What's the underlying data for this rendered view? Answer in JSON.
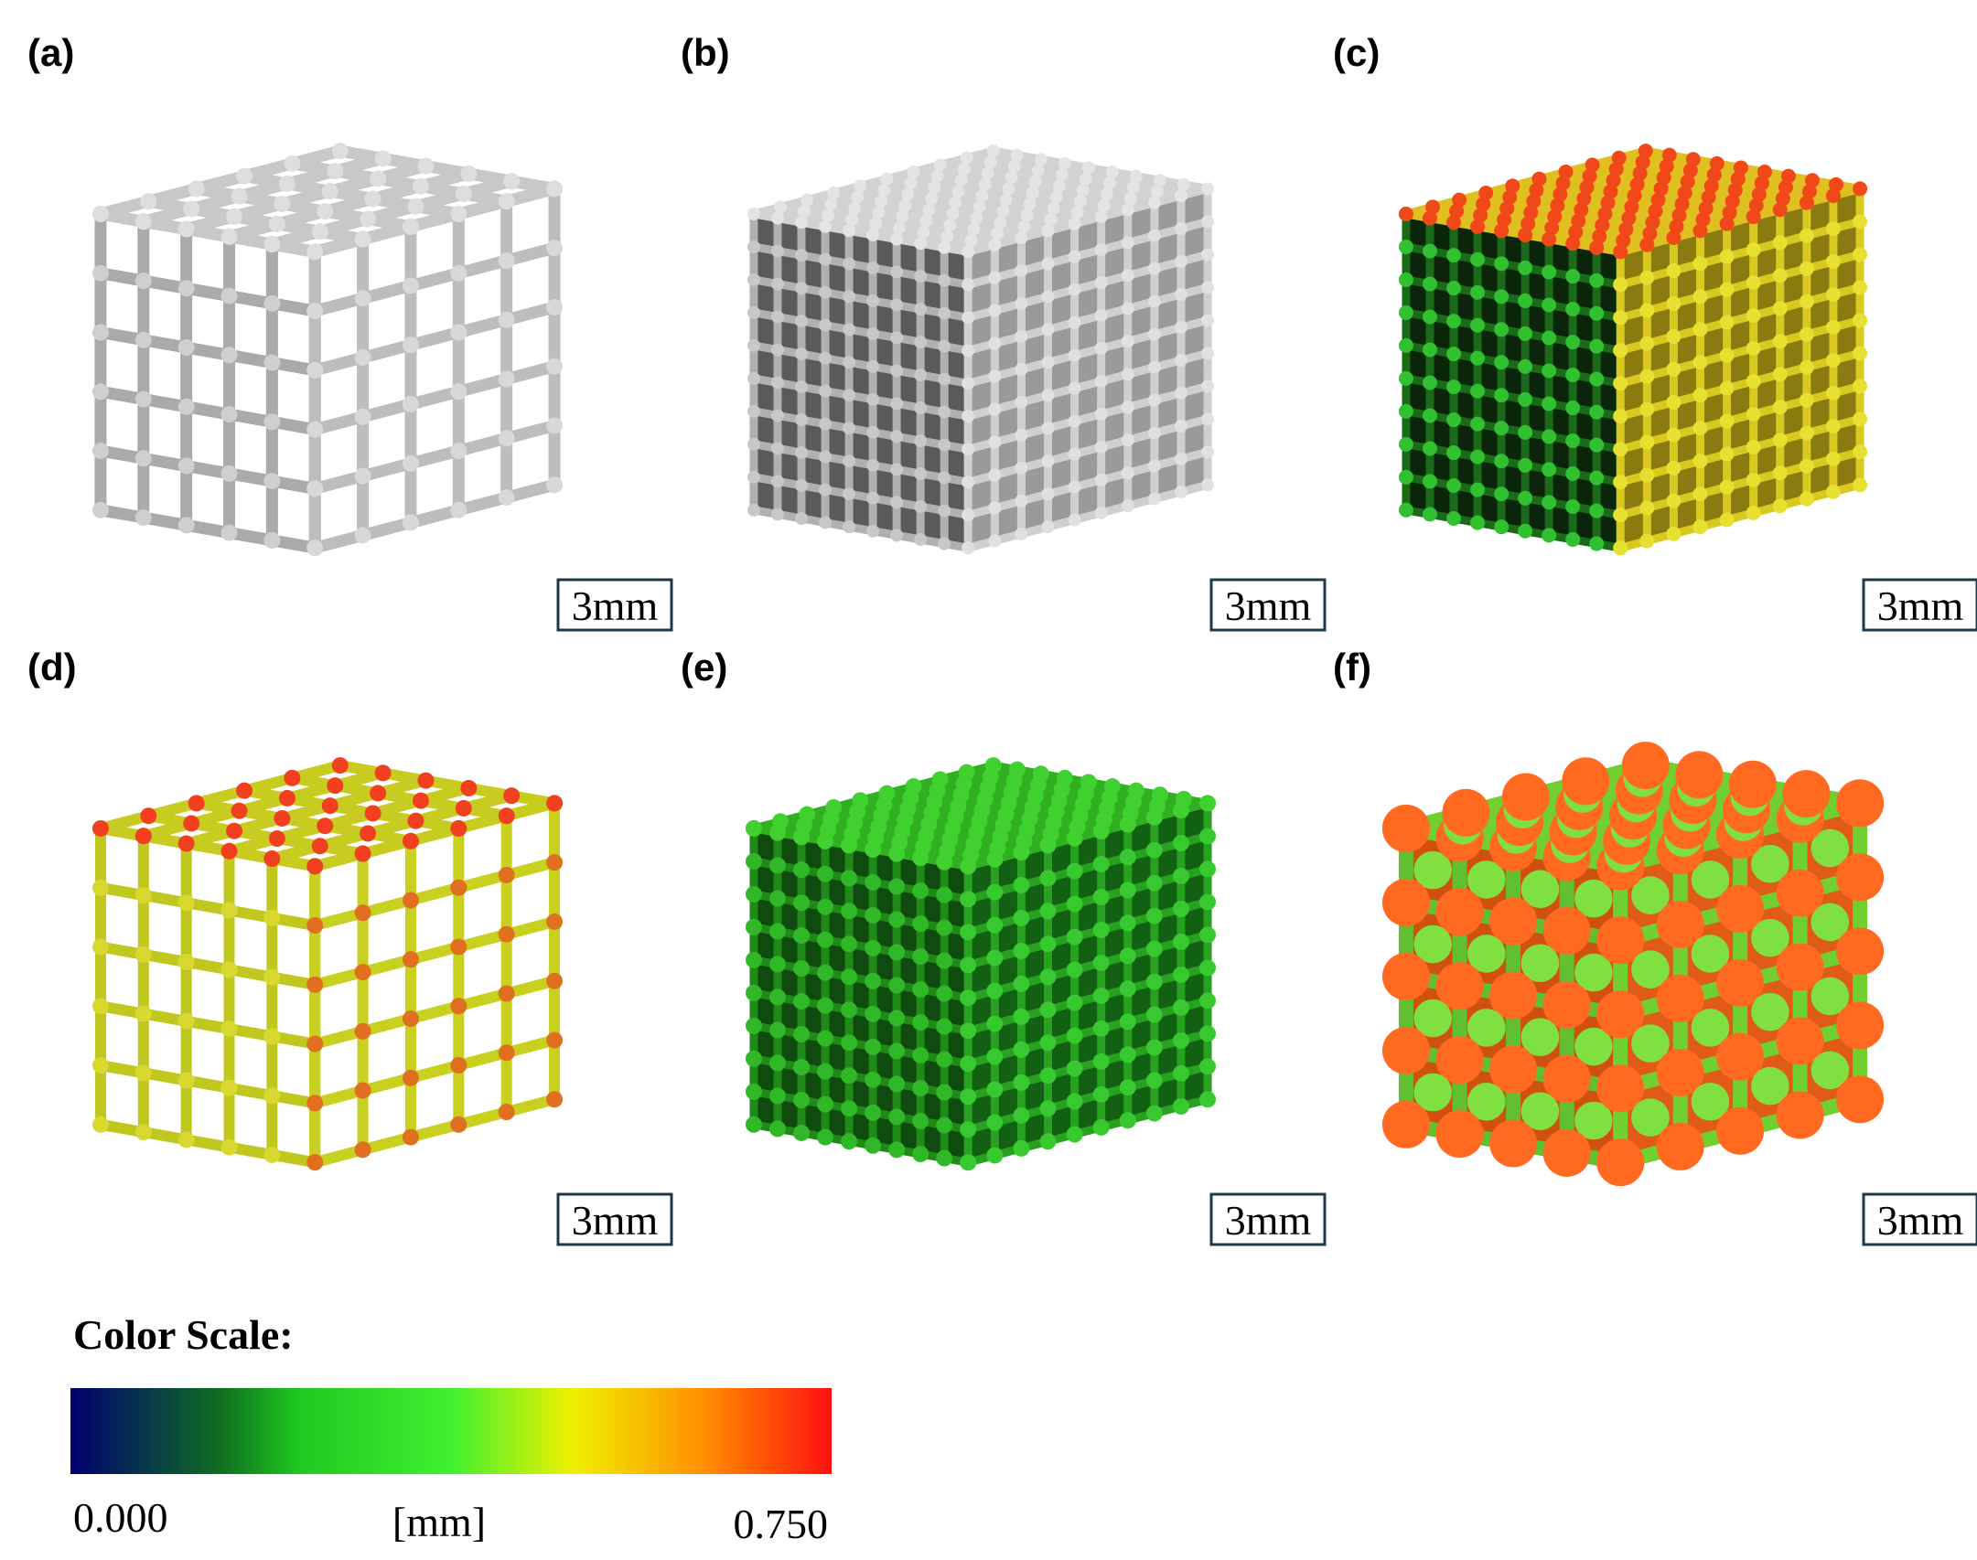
{
  "panels": [
    {
      "label": "(a)",
      "scale_bar": "3mm"
    },
    {
      "label": "(b)",
      "scale_bar": "3mm"
    },
    {
      "label": "(c)",
      "scale_bar": "3mm"
    },
    {
      "label": "(d)",
      "scale_bar": "3mm"
    },
    {
      "label": "(e)",
      "scale_bar": "3mm"
    },
    {
      "label": "(f)",
      "scale_bar": "3mm"
    }
  ],
  "color_scale": {
    "title": "Color Scale:",
    "min_label": "0.000",
    "unit": "[mm]",
    "max_label": "0.750"
  }
}
